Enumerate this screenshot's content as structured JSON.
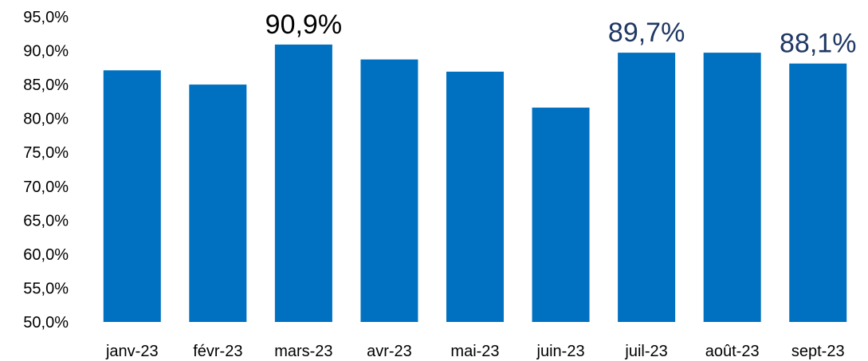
{
  "chart_data": {
    "type": "bar",
    "categories": [
      "janv-23",
      "févr-23",
      "mars-23",
      "avr-23",
      "mai-23",
      "juin-23",
      "juil-23",
      "août-23",
      "sept-23"
    ],
    "values": [
      87.1,
      85.0,
      90.9,
      88.7,
      86.9,
      81.6,
      89.7,
      89.7,
      88.1
    ],
    "value_labels": [
      null,
      null,
      "90,9%",
      null,
      null,
      null,
      "89,7%",
      null,
      "88,1%"
    ],
    "value_label_colors": [
      null,
      null,
      "#000000",
      null,
      null,
      null,
      "#1f3864",
      null,
      "#1f3864"
    ],
    "color": "#0070c0",
    "ylim": [
      50,
      95
    ],
    "yticks": [
      {
        "value": 50,
        "label": "50,0%"
      },
      {
        "value": 55,
        "label": "55,0%"
      },
      {
        "value": 60,
        "label": "60,0%"
      },
      {
        "value": 65,
        "label": "65,0%"
      },
      {
        "value": 70,
        "label": "70,0%"
      },
      {
        "value": 75,
        "label": "75,0%"
      },
      {
        "value": 80,
        "label": "80,0%"
      },
      {
        "value": 85,
        "label": "85,0%"
      },
      {
        "value": 90,
        "label": "90,0%"
      },
      {
        "value": 95,
        "label": "95,0%"
      }
    ],
    "grid": false
  }
}
